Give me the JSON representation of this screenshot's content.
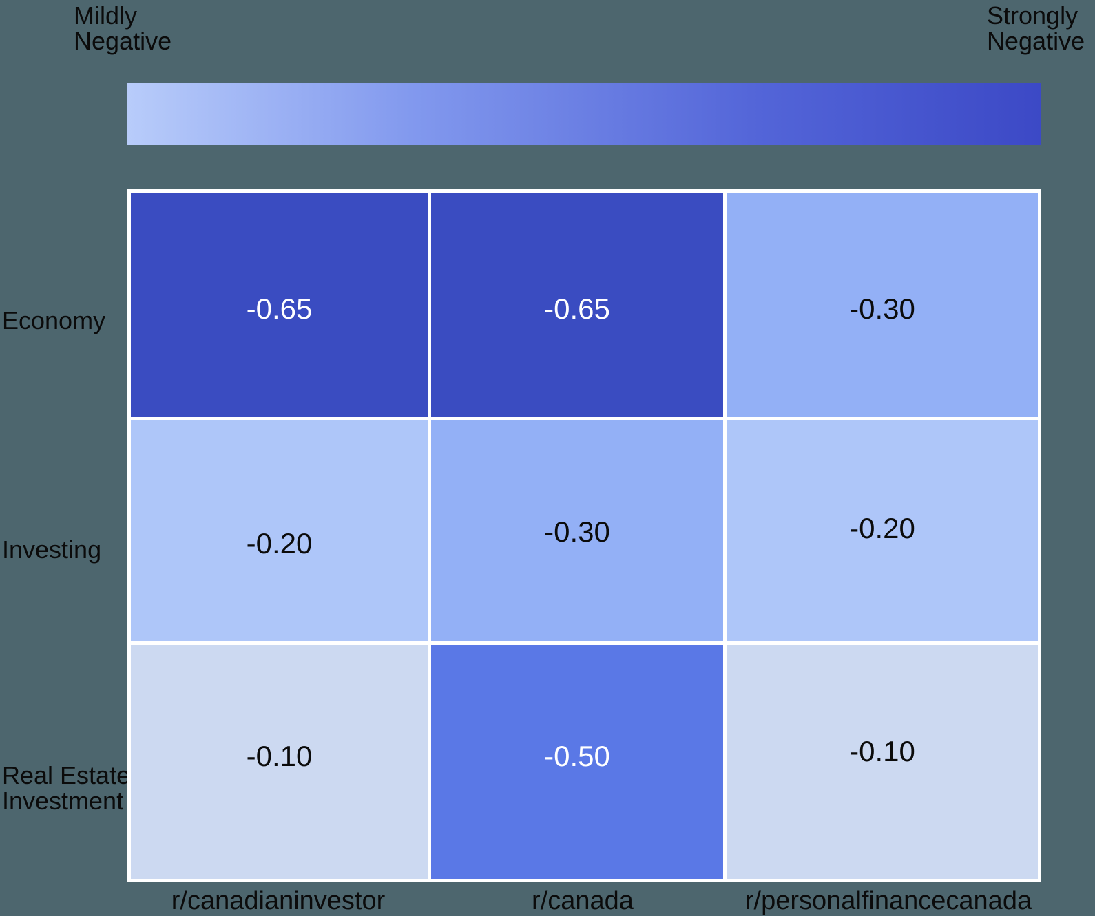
{
  "colors": {
    "background": "#4d666e",
    "grid_border": "#ffffff",
    "gradient_stops": [
      "#b8ccfa",
      "#8299ee",
      "#5365d8",
      "#3c49c6"
    ],
    "label_text": "#0b0b0b"
  },
  "colorbar_labels": {
    "min_line1": "Mildly",
    "min_line2": "Negative",
    "max_line1": "Strongly",
    "max_line2": "Negative"
  },
  "row_labels": [
    {
      "line1": "Economy",
      "line2": ""
    },
    {
      "line1": "Investing",
      "line2": ""
    },
    {
      "line1": "Real Estate",
      "line2": "Investment"
    }
  ],
  "col_labels": [
    "r/canadianinvestor",
    "r/canada",
    "r/personalfinancecanada"
  ],
  "chart_data": {
    "type": "heatmap",
    "title": "",
    "x_categories": [
      "r/canadianinvestor",
      "r/canada",
      "r/personalfinancecanada"
    ],
    "y_categories": [
      "Economy",
      "Investing",
      "Real Estate Investment"
    ],
    "values": [
      [
        -0.65,
        -0.65,
        -0.3
      ],
      [
        -0.2,
        -0.3,
        -0.2
      ],
      [
        -0.1,
        -0.5,
        -0.1
      ]
    ],
    "legend": {
      "position": "top",
      "orientation": "horizontal",
      "min_label": "Mildly Negative",
      "max_label": "Strongly Negative"
    },
    "cells": [
      {
        "row": "Economy",
        "col": "r/canadianinvestor",
        "label": "-0.65",
        "color": "#3a4cc1",
        "text_color": "#ffffff"
      },
      {
        "row": "Economy",
        "col": "r/canada",
        "label": "-0.65",
        "color": "#3a4cc1",
        "text_color": "#ffffff"
      },
      {
        "row": "Economy",
        "col": "r/personalfinancecanada",
        "label": "-0.30",
        "color": "#93b0f6",
        "text_color": "#0b0b0b"
      },
      {
        "row": "Investing",
        "col": "r/canadianinvestor",
        "label": "-0.20",
        "color": "#aec6f9",
        "text_color": "#0b0b0b"
      },
      {
        "row": "Investing",
        "col": "r/canada",
        "label": "-0.30",
        "color": "#93b0f6",
        "text_color": "#0b0b0b"
      },
      {
        "row": "Investing",
        "col": "r/personalfinancecanada",
        "label": "-0.20",
        "color": "#aec6f9",
        "text_color": "#0b0b0b"
      },
      {
        "row": "Real Estate Investment",
        "col": "r/canadianinvestor",
        "label": "-0.10",
        "color": "#ccd9f1",
        "text_color": "#0b0b0b"
      },
      {
        "row": "Real Estate Investment",
        "col": "r/canada",
        "label": "-0.50",
        "color": "#5a78e6",
        "text_color": "#ffffff"
      },
      {
        "row": "Real Estate Investment",
        "col": "r/personalfinancecanada",
        "label": "-0.10",
        "color": "#ccd9f1",
        "text_color": "#0b0b0b"
      }
    ]
  }
}
